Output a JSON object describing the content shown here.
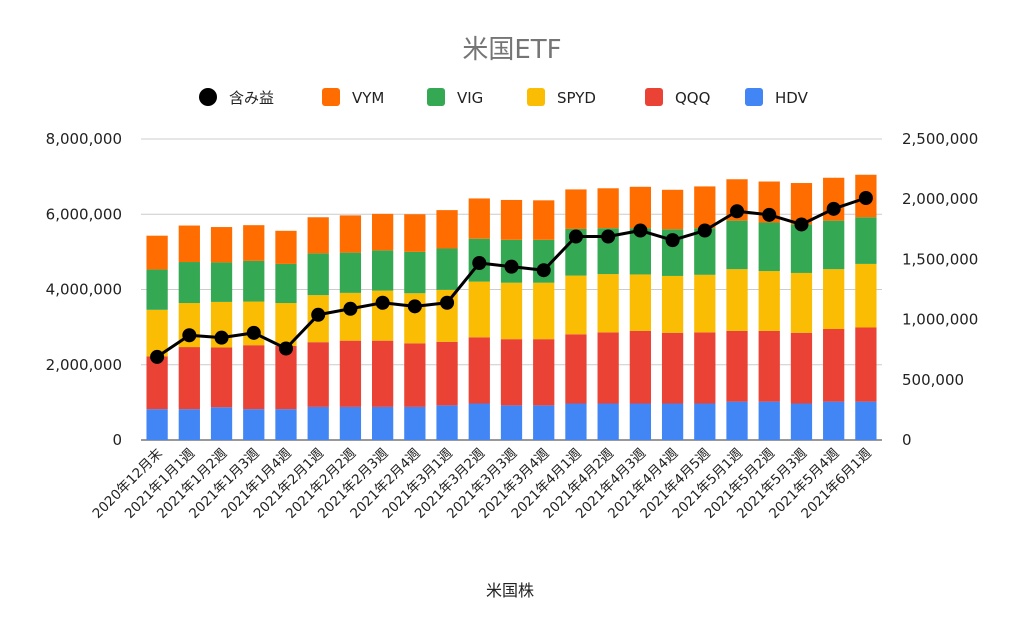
{
  "chart_data": {
    "type": "bar",
    "stacked": true,
    "title": "米国ETF",
    "xlabel": "米国株",
    "ylabel": "",
    "ylim": [
      0,
      8000000
    ],
    "y2lim": [
      0,
      2500000
    ],
    "y_ticks": [
      "0",
      "2,000,000",
      "4,000,000",
      "6,000,000",
      "8,000,000"
    ],
    "y2_ticks": [
      "0",
      "500,000",
      "1,000,000",
      "1,500,000",
      "2,000,000",
      "2,500,000"
    ],
    "grid": true,
    "legend_position": "top",
    "categories": [
      "2020年12月末",
      "2021年1月1週",
      "2021年1月2週",
      "2021年1月3週",
      "2021年1月4週",
      "2021年2月1週",
      "2021年2月2週",
      "2021年2月3週",
      "2021年2月4週",
      "2021年3月1週",
      "2021年3月2週",
      "2021年3月3週",
      "2021年3月4週",
      "2021年4月1週",
      "2021年4月2週",
      "2021年4月3週",
      "2021年4月4週",
      "2021年4月5週",
      "2021年5月1週",
      "2021年5月2週",
      "2021年5月3週",
      "2021年5月4週",
      "2021年6月1週"
    ],
    "series": [
      {
        "name": "HDV",
        "color": "#4285f4",
        "values": [
          820000,
          820000,
          870000,
          820000,
          820000,
          880000,
          880000,
          880000,
          880000,
          920000,
          970000,
          920000,
          920000,
          970000,
          970000,
          970000,
          970000,
          970000,
          1020000,
          1020000,
          970000,
          1020000,
          1020000
        ]
      },
      {
        "name": "QQQ",
        "color": "#ea4335",
        "values": [
          1400000,
          1650000,
          1590000,
          1700000,
          1680000,
          1720000,
          1760000,
          1760000,
          1690000,
          1690000,
          1760000,
          1760000,
          1760000,
          1840000,
          1890000,
          1930000,
          1880000,
          1890000,
          1880000,
          1880000,
          1880000,
          1930000,
          1970000
        ]
      },
      {
        "name": "SPYD",
        "color": "#fbbc04",
        "values": [
          1240000,
          1170000,
          1210000,
          1160000,
          1140000,
          1250000,
          1270000,
          1330000,
          1330000,
          1380000,
          1480000,
          1500000,
          1500000,
          1560000,
          1550000,
          1500000,
          1510000,
          1530000,
          1640000,
          1590000,
          1590000,
          1590000,
          1690000
        ]
      },
      {
        "name": "VIG",
        "color": "#34a853",
        "values": [
          1070000,
          1090000,
          1050000,
          1080000,
          1040000,
          1110000,
          1070000,
          1070000,
          1100000,
          1100000,
          1140000,
          1140000,
          1140000,
          1240000,
          1220000,
          1230000,
          1240000,
          1240000,
          1290000,
          1290000,
          1290000,
          1290000,
          1240000
        ]
      },
      {
        "name": "VYM",
        "color": "#ff6d01",
        "values": [
          900000,
          970000,
          940000,
          950000,
          880000,
          960000,
          990000,
          970000,
          1000000,
          1020000,
          1070000,
          1060000,
          1050000,
          1050000,
          1060000,
          1100000,
          1050000,
          1110000,
          1100000,
          1090000,
          1100000,
          1140000,
          1130000
        ]
      }
    ],
    "line_series": {
      "name": "含み益",
      "color": "#000000",
      "axis": "right",
      "values": [
        690000,
        870000,
        850000,
        890000,
        760000,
        1040000,
        1090000,
        1140000,
        1110000,
        1140000,
        1470000,
        1440000,
        1410000,
        1690000,
        1690000,
        1740000,
        1660000,
        1740000,
        1900000,
        1870000,
        1790000,
        1920000,
        2010000
      ]
    },
    "legend_order": [
      "含み益",
      "VYM",
      "VIG",
      "SPYD",
      "QQQ",
      "HDV"
    ]
  }
}
